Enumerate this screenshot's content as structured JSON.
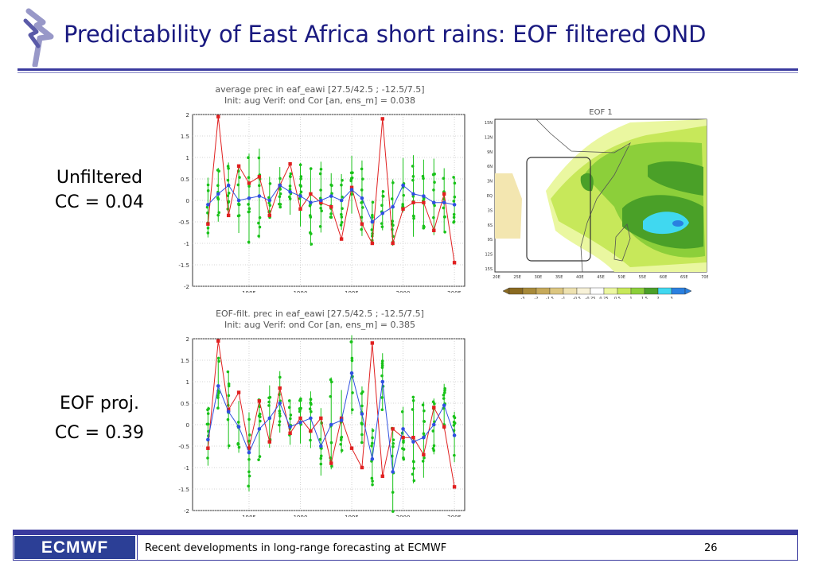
{
  "title": "Predictability of East Africa short rains: EOF filtered OND",
  "labels": {
    "unfiltered_name": "Unfiltered",
    "unfiltered_cc": "CC = 0.04",
    "eof_name": "EOF proj.",
    "eof_cc": "CC = 0.39"
  },
  "footer": {
    "logo": "ECMWF",
    "text": "Recent developments in long-range forecasting at ECMWF",
    "page": "26"
  },
  "colors": {
    "brand": "#2c3f96",
    "title": "#1a1a80",
    "observed": "#e02020",
    "ensemble_mean": "#3050e0",
    "members": "#19c219"
  },
  "chart_data": [
    {
      "type": "line",
      "title": "average prec in eaf_eawi [27.5/42.5 ; -12.5/7.5]",
      "subtitle": "Init: aug   Verif: ond   Cor [an, ens_m] = 0.038",
      "ylim": [
        -2,
        2
      ],
      "yticks": [
        "2",
        "1.5",
        "1",
        "0.5",
        "0",
        "-0.5",
        "-1",
        "-1.5",
        "-2"
      ],
      "xticks": [
        "1985",
        "1990",
        "1995",
        "2000",
        "2005"
      ],
      "x": [
        1981,
        1982,
        1983,
        1984,
        1985,
        1986,
        1987,
        1988,
        1989,
        1990,
        1991,
        1992,
        1993,
        1994,
        1995,
        1996,
        1997,
        1998,
        1999,
        2000,
        2001,
        2002,
        2003,
        2004,
        2005
      ],
      "series": [
        {
          "name": "observed",
          "values": [
            -0.55,
            1.95,
            -0.35,
            0.8,
            0.4,
            0.55,
            -0.35,
            0.35,
            0.85,
            -0.2,
            0.15,
            -0.05,
            -0.15,
            -0.9,
            0.3,
            -0.55,
            -1.0,
            1.9,
            -1.0,
            -0.2,
            -0.05,
            -0.05,
            -0.7,
            0.15,
            -1.45
          ]
        },
        {
          "name": "ensemble mean",
          "values": [
            -0.1,
            0.15,
            0.35,
            0.0,
            0.05,
            0.1,
            0.0,
            0.35,
            0.2,
            0.1,
            -0.05,
            0.0,
            0.1,
            0.0,
            0.25,
            0.05,
            -0.5,
            -0.3,
            -0.15,
            0.35,
            0.15,
            0.1,
            -0.05,
            -0.05,
            -0.1
          ]
        }
      ]
    },
    {
      "type": "line",
      "title": "EOF-filt. prec in eaf_eawi [27.5/42.5 ; -12.5/7.5]",
      "subtitle": "Init: aug   Verif: ond   Cor [an, ens_m] = 0.385",
      "ylim": [
        -2,
        2
      ],
      "yticks": [
        "2",
        "1.5",
        "1",
        "0.5",
        "0",
        "-0.5",
        "-1",
        "-1.5",
        "-2"
      ],
      "xticks": [
        "1985",
        "1990",
        "1995",
        "2000",
        "2005"
      ],
      "x": [
        1981,
        1982,
        1983,
        1984,
        1985,
        1986,
        1987,
        1988,
        1989,
        1990,
        1991,
        1992,
        1993,
        1994,
        1995,
        1996,
        1997,
        1998,
        1999,
        2000,
        2001,
        2002,
        2003,
        2004,
        2005
      ],
      "series": [
        {
          "name": "observed",
          "values": [
            -0.55,
            1.95,
            0.35,
            0.75,
            -0.55,
            0.55,
            -0.4,
            0.85,
            -0.2,
            0.15,
            -0.15,
            0.15,
            -0.9,
            0.15,
            -0.55,
            -1.0,
            1.9,
            -1.2,
            -0.1,
            -0.3,
            -0.3,
            -0.7,
            0.4,
            -0.05,
            -1.45
          ]
        },
        {
          "name": "ensemble mean",
          "values": [
            -0.35,
            0.9,
            0.3,
            -0.05,
            -0.65,
            -0.1,
            0.15,
            0.5,
            -0.05,
            0.05,
            0.15,
            -0.5,
            0.0,
            0.1,
            1.2,
            0.25,
            -0.8,
            1.0,
            -1.1,
            -0.1,
            -0.4,
            -0.3,
            0.0,
            0.45,
            -0.25
          ]
        }
      ]
    },
    {
      "type": "heatmap",
      "title": "EOF 1",
      "legend_ticks": [
        "-3",
        "-2",
        "-1.5",
        "-1",
        "-0.5",
        "-0.25",
        "0.25",
        "0.5",
        "1",
        "1.5",
        "2",
        "3"
      ],
      "legend_colors": [
        "#8a6a20",
        "#a88a3a",
        "#c6a95a",
        "#dcc680",
        "#eee2b0",
        "#f8f2d8",
        "#ffffff",
        "#ecf7a0",
        "#c7e85a",
        "#8ccf3a",
        "#4aa028",
        "#40d8f0",
        "#2a80e0"
      ],
      "yticks": [
        "15N",
        "12N",
        "9N",
        "6N",
        "3N",
        "EQ",
        "3S",
        "6S",
        "9S",
        "12S",
        "15S"
      ],
      "xticks": [
        "20E",
        "25E",
        "30E",
        "35E",
        "40E",
        "45E",
        "50E",
        "55E",
        "60E",
        "65E",
        "70E"
      ]
    }
  ]
}
